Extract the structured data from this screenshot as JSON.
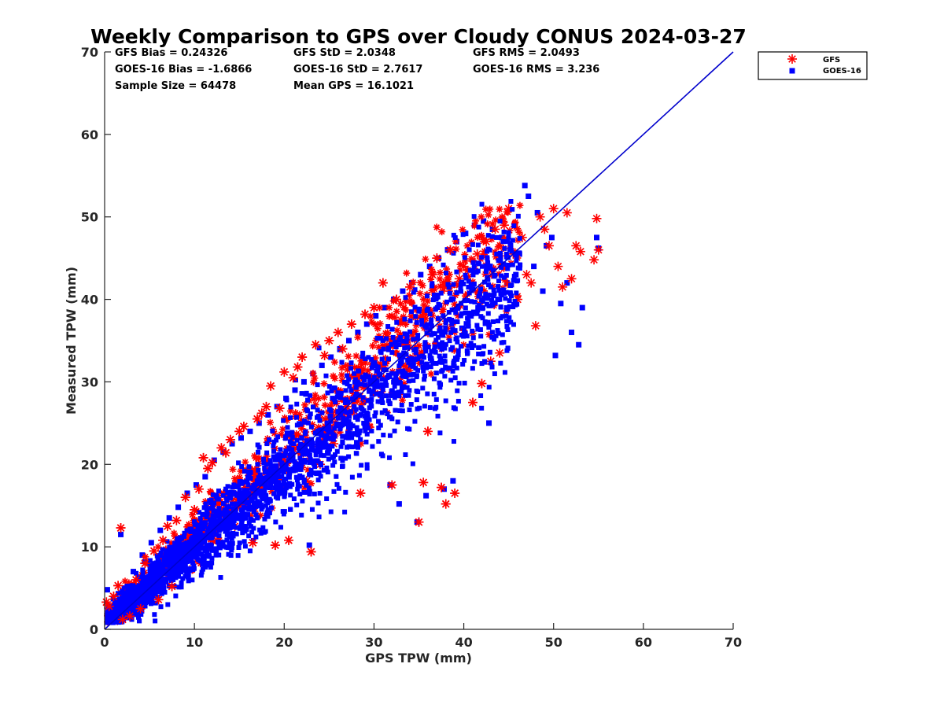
{
  "chart_data": {
    "type": "scatter",
    "title": "Weekly Comparison to GPS over Cloudy CONUS 2024-03-27",
    "xlabel": "GPS TPW (mm)",
    "ylabel": "Measured TPW (mm)",
    "xlim": [
      0,
      70
    ],
    "ylim": [
      0,
      70
    ],
    "xticks": [
      0,
      10,
      20,
      30,
      40,
      50,
      60,
      70
    ],
    "yticks": [
      0,
      10,
      20,
      30,
      40,
      50,
      60,
      70
    ],
    "grid": false,
    "legend_position": "outside-top-right",
    "stats": [
      [
        "GFS Bias = 0.24326",
        "GFS StD = 2.0348",
        "GFS RMS = 2.0493"
      ],
      [
        "GOES-16 Bias = -1.6866",
        "GOES-16 StD = 2.7617",
        "GOES-16 RMS = 3.236"
      ],
      [
        "Sample Size = 64478",
        "Mean GPS = 16.1021",
        ""
      ]
    ],
    "one_to_one_line": {
      "x": [
        0,
        70
      ],
      "y": [
        0,
        70
      ],
      "color": "#0000cc"
    },
    "series": [
      {
        "name": "GFS",
        "marker": "asterisk",
        "color": "#ff0000",
        "points": [
          [
            0.2,
            3.3
          ],
          [
            0.5,
            2.8
          ],
          [
            1.0,
            4.0
          ],
          [
            1.5,
            5.3
          ],
          [
            1.8,
            12.3
          ],
          [
            2.0,
            1.2
          ],
          [
            2.3,
            3.0
          ],
          [
            2.8,
            1.6
          ],
          [
            3.5,
            6.0
          ],
          [
            4.0,
            2.5
          ],
          [
            4.5,
            8.0
          ],
          [
            5.0,
            4.2
          ],
          [
            5.5,
            9.5
          ],
          [
            6.0,
            3.6
          ],
          [
            6.5,
            10.8
          ],
          [
            7.0,
            12.5
          ],
          [
            7.5,
            5.2
          ],
          [
            8.0,
            13.2
          ],
          [
            8.5,
            11.0
          ],
          [
            9.0,
            16.0
          ],
          [
            9.5,
            7.2
          ],
          [
            10.0,
            14.5
          ],
          [
            10.5,
            17.0
          ],
          [
            11.0,
            20.8
          ],
          [
            11.5,
            19.5
          ],
          [
            12.0,
            20.2
          ],
          [
            12.5,
            10.8
          ],
          [
            13.0,
            22.0
          ],
          [
            13.5,
            21.4
          ],
          [
            14.0,
            23.0
          ],
          [
            14.5,
            12.5
          ],
          [
            15.0,
            24.0
          ],
          [
            15.5,
            24.6
          ],
          [
            16.0,
            19.0
          ],
          [
            16.5,
            10.5
          ],
          [
            17.0,
            25.5
          ],
          [
            17.5,
            26.2
          ],
          [
            18.0,
            27.0
          ],
          [
            18.5,
            29.5
          ],
          [
            19.0,
            10.2
          ],
          [
            19.5,
            26.8
          ],
          [
            20.0,
            31.2
          ],
          [
            20.5,
            10.8
          ],
          [
            21.0,
            30.5
          ],
          [
            21.5,
            31.8
          ],
          [
            22.0,
            33.0
          ],
          [
            22.5,
            18.0
          ],
          [
            23.0,
            9.4
          ],
          [
            23.5,
            34.5
          ],
          [
            24.0,
            20.0
          ],
          [
            24.5,
            33.2
          ],
          [
            25.0,
            35.0
          ],
          [
            25.5,
            22.5
          ],
          [
            26.0,
            36.0
          ],
          [
            26.5,
            34.0
          ],
          [
            27.0,
            27.0
          ],
          [
            27.5,
            37.0
          ],
          [
            28.0,
            28.0
          ],
          [
            28.5,
            16.5
          ],
          [
            29.0,
            38.2
          ],
          [
            29.5,
            24.5
          ],
          [
            30.0,
            39.0
          ],
          [
            31.0,
            42.0
          ],
          [
            31.5,
            35.5
          ],
          [
            32.0,
            17.5
          ],
          [
            32.5,
            40.0
          ],
          [
            33.0,
            37.5
          ],
          [
            34.0,
            41.5
          ],
          [
            35.0,
            13.0
          ],
          [
            35.5,
            17.8
          ],
          [
            36.0,
            24.0
          ],
          [
            36.5,
            43.0
          ],
          [
            37.0,
            45.0
          ],
          [
            37.5,
            17.2
          ],
          [
            38.0,
            15.2
          ],
          [
            38.5,
            46.0
          ],
          [
            39.0,
            16.5
          ],
          [
            39.5,
            42.5
          ],
          [
            40.0,
            44.0
          ],
          [
            41.0,
            27.5
          ],
          [
            41.5,
            45.5
          ],
          [
            42.0,
            29.8
          ],
          [
            42.5,
            47.0
          ],
          [
            43.0,
            32.5
          ],
          [
            43.5,
            48.5
          ],
          [
            44.0,
            33.5
          ],
          [
            44.5,
            49.0
          ],
          [
            45.0,
            51.0
          ],
          [
            45.5,
            45.5
          ],
          [
            46.0,
            40.0
          ],
          [
            46.5,
            47.5
          ],
          [
            47.0,
            43.0
          ],
          [
            47.5,
            42.0
          ],
          [
            48.0,
            36.8
          ],
          [
            48.5,
            50.0
          ],
          [
            49.0,
            48.5
          ],
          [
            49.5,
            46.5
          ],
          [
            50.0,
            51.0
          ],
          [
            50.5,
            44.0
          ],
          [
            51.0,
            41.5
          ],
          [
            51.5,
            50.5
          ],
          [
            52.0,
            42.5
          ],
          [
            52.5,
            46.5
          ],
          [
            53.0,
            45.8
          ],
          [
            54.5,
            44.8
          ],
          [
            54.8,
            49.8
          ],
          [
            55.0,
            46.0
          ]
        ]
      },
      {
        "name": "GOES-16",
        "marker": "square",
        "color": "#0000ff",
        "points": [
          [
            0.3,
            4.8
          ],
          [
            0.8,
            2.2
          ],
          [
            1.2,
            3.5
          ],
          [
            1.8,
            11.5
          ],
          [
            2.2,
            5.0
          ],
          [
            2.8,
            3.0
          ],
          [
            3.2,
            7.0
          ],
          [
            3.8,
            4.5
          ],
          [
            4.2,
            9.0
          ],
          [
            4.8,
            5.5
          ],
          [
            5.2,
            10.5
          ],
          [
            5.8,
            6.5
          ],
          [
            6.2,
            12.0
          ],
          [
            6.8,
            7.5
          ],
          [
            7.2,
            13.5
          ],
          [
            7.8,
            8.2
          ],
          [
            8.2,
            14.8
          ],
          [
            8.8,
            9.5
          ],
          [
            9.2,
            16.5
          ],
          [
            9.8,
            10.5
          ],
          [
            10.2,
            17.5
          ],
          [
            10.8,
            11.0
          ],
          [
            11.2,
            18.5
          ],
          [
            11.8,
            12.0
          ],
          [
            12.2,
            20.5
          ],
          [
            12.8,
            13.0
          ],
          [
            13.2,
            21.5
          ],
          [
            13.8,
            14.2
          ],
          [
            14.2,
            22.5
          ],
          [
            14.8,
            15.0
          ],
          [
            15.2,
            23.2
          ],
          [
            15.8,
            15.8
          ],
          [
            16.2,
            24.0
          ],
          [
            16.8,
            16.8
          ],
          [
            17.2,
            25.0
          ],
          [
            17.8,
            17.8
          ],
          [
            18.2,
            26.0
          ],
          [
            18.8,
            18.5
          ],
          [
            19.2,
            27.0
          ],
          [
            19.8,
            19.5
          ],
          [
            20.2,
            28.0
          ],
          [
            20.8,
            20.5
          ],
          [
            21.2,
            29.0
          ],
          [
            21.8,
            21.5
          ],
          [
            22.2,
            30.0
          ],
          [
            22.8,
            10.2
          ],
          [
            23.2,
            31.0
          ],
          [
            23.8,
            22.8
          ],
          [
            24.2,
            32.0
          ],
          [
            24.8,
            23.8
          ],
          [
            25.2,
            33.0
          ],
          [
            25.8,
            24.8
          ],
          [
            26.2,
            34.0
          ],
          [
            26.8,
            25.5
          ],
          [
            27.2,
            35.0
          ],
          [
            27.8,
            26.5
          ],
          [
            28.2,
            36.0
          ],
          [
            28.8,
            27.5
          ],
          [
            29.2,
            37.0
          ],
          [
            29.8,
            28.5
          ],
          [
            30.2,
            38.0
          ],
          [
            30.8,
            29.5
          ],
          [
            31.2,
            39.0
          ],
          [
            31.8,
            17.5
          ],
          [
            32.2,
            40.0
          ],
          [
            32.8,
            15.2
          ],
          [
            33.2,
            41.0
          ],
          [
            33.8,
            31.5
          ],
          [
            34.2,
            42.0
          ],
          [
            34.8,
            13.0
          ],
          [
            35.2,
            43.0
          ],
          [
            35.8,
            16.2
          ],
          [
            36.2,
            44.0
          ],
          [
            36.8,
            34.5
          ],
          [
            37.2,
            45.0
          ],
          [
            37.8,
            17.0
          ],
          [
            38.2,
            46.0
          ],
          [
            38.8,
            18.0
          ],
          [
            39.2,
            47.0
          ],
          [
            39.8,
            36.5
          ],
          [
            40.2,
            48.0
          ],
          [
            40.8,
            38.0
          ],
          [
            41.2,
            49.0
          ],
          [
            41.8,
            39.0
          ],
          [
            42.2,
            49.5
          ],
          [
            42.8,
            25.0
          ],
          [
            43.2,
            48.5
          ],
          [
            43.8,
            40.0
          ],
          [
            44.2,
            47.5
          ],
          [
            44.8,
            42.0
          ],
          [
            45.2,
            46.5
          ],
          [
            45.8,
            43.0
          ],
          [
            46.2,
            45.5
          ],
          [
            46.8,
            53.8
          ],
          [
            47.2,
            52.5
          ],
          [
            47.8,
            44.0
          ],
          [
            48.2,
            50.5
          ],
          [
            48.8,
            41.0
          ],
          [
            49.2,
            46.5
          ],
          [
            49.8,
            47.5
          ],
          [
            50.2,
            33.2
          ],
          [
            50.8,
            39.5
          ],
          [
            51.5,
            42.0
          ],
          [
            52.0,
            36.0
          ],
          [
            52.8,
            34.5
          ],
          [
            53.2,
            39.0
          ],
          [
            54.8,
            47.5
          ],
          [
            55.0,
            46.2
          ]
        ]
      }
    ]
  }
}
